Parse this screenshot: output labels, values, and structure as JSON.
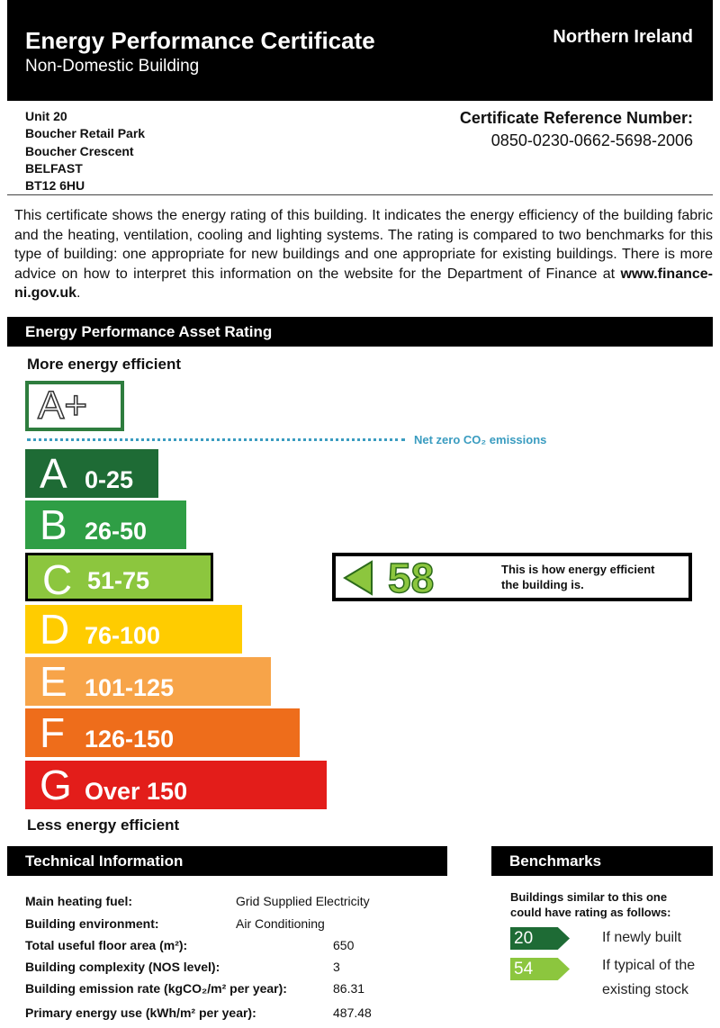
{
  "header": {
    "title": "Energy Performance Certificate",
    "subtitle": "Non-Domestic Building",
    "region": "Northern Ireland"
  },
  "address": [
    "Unit 20",
    "Boucher Retail Park",
    "Boucher Crescent",
    "BELFAST",
    "BT12 6HU"
  ],
  "certificate": {
    "label": "Certificate Reference Number:",
    "number": "0850-0230-0662-5698-2006"
  },
  "intro": {
    "text": "This certificate shows the energy rating of this building. It indicates the energy efficiency of the building fabric and the heating, ventilation, cooling and lighting systems. The rating is compared to two benchmarks for this type of building: one appropriate for new buildings and one appropriate for existing buildings. There is more advice on how to interpret this information on the website for the Department of Finance at ",
    "link": "www.finance-ni.gov.uk",
    "end": "."
  },
  "rating": {
    "section_title": "Energy Performance Asset Rating",
    "more": "More energy efficient",
    "less": "Less energy efficient",
    "aplus": "A+",
    "net_zero": "Net zero CO₂ emissions",
    "bands": [
      {
        "letter": "A",
        "range": "0-25",
        "color": "#1e6b35"
      },
      {
        "letter": "B",
        "range": "26-50",
        "color": "#2f9e45"
      },
      {
        "letter": "C",
        "range": "51-75",
        "color": "#8cc63e"
      },
      {
        "letter": "D",
        "range": "76-100",
        "color": "#ffcc00"
      },
      {
        "letter": "E",
        "range": "101-125",
        "color": "#f7a449"
      },
      {
        "letter": "F",
        "range": "126-150",
        "color": "#ee6d1b"
      },
      {
        "letter": "G",
        "range": "Over 150",
        "color": "#e31d1a"
      }
    ],
    "current_band": "C",
    "value": "58",
    "caption1": "This is how energy efficient",
    "caption2": "the building is."
  },
  "technical": {
    "title": "Technical Information",
    "rows": [
      {
        "label": "Main heating fuel:",
        "value": "Grid Supplied Electricity"
      },
      {
        "label": "Building environment:",
        "value": "Air Conditioning"
      },
      {
        "label": "Total useful floor area (m²):",
        "value": "650"
      },
      {
        "label": "Building complexity (NOS level):",
        "value": "3"
      },
      {
        "label": "Building emission rate (kgCO₂/m² per year):",
        "value": "86.31"
      },
      {
        "label": "Primary energy use (kWh/m² per year):",
        "value": "487.48"
      }
    ]
  },
  "benchmarks": {
    "title": "Benchmarks",
    "intro1": "Buildings similar to this one",
    "intro2": "could have rating as follows:",
    "items": [
      {
        "value": "20",
        "label": "If newly built",
        "color": "#1e6b35"
      },
      {
        "value": "54",
        "label1": "If typical of the",
        "label2": "existing stock",
        "color": "#8cc63e"
      }
    ]
  }
}
